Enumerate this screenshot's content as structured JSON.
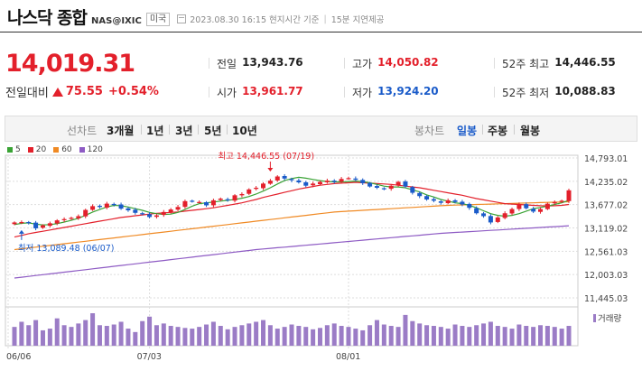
{
  "header": {
    "title": "나스닥 종합",
    "code": "NAS@IXIC",
    "nation": "미국",
    "timestamp": "2023.08.30 16:15 현지시간 기준",
    "delay": "15분 지연제공"
  },
  "quote": {
    "price": "14,019.31",
    "change_label": "전일대비",
    "change": "75.55",
    "change_pct": "+0.54%",
    "stats": [
      {
        "k": "전일",
        "v": "13,943.76",
        "tone": "neutral"
      },
      {
        "k": "고가",
        "v": "14,050.82",
        "tone": "red"
      },
      {
        "k": "52주 최고",
        "v": "14,446.55",
        "tone": "neutral"
      },
      {
        "k": "시가",
        "v": "13,961.77",
        "tone": "red"
      },
      {
        "k": "저가",
        "v": "13,924.20",
        "tone": "blue"
      },
      {
        "k": "52주 최저",
        "v": "10,088.83",
        "tone": "neutral"
      }
    ]
  },
  "toolbar": {
    "line_label": "선차트",
    "line_options": [
      "3개월",
      "1년",
      "3년",
      "5년",
      "10년"
    ],
    "bar_label": "봉차트",
    "bar_options": [
      "일봉",
      "주봉",
      "월봉"
    ],
    "active_bar": "일봉"
  },
  "chart_data": {
    "type": "candlestick",
    "x_ticks": [
      "06/06",
      "07/03",
      "08/01"
    ],
    "y_ticks": [
      14793.01,
      14235.02,
      13677.02,
      13119.02,
      12561.03,
      12003.03,
      11445.03
    ],
    "y_tick_labels": [
      "14,793.01",
      "14,235.02",
      "13,677.02",
      "13,119.02",
      "12,561.03",
      "12,003.03",
      "11,445.03"
    ],
    "ylim": [
      11445.03,
      14793.01
    ],
    "legend": [
      {
        "name": "5",
        "color": "#3aa335"
      },
      {
        "name": "20",
        "color": "#e3202b"
      },
      {
        "name": "60",
        "color": "#f08a24"
      },
      {
        "name": "120",
        "color": "#8e5bc4"
      }
    ],
    "volume_label": "거래량",
    "high_annotation": "최고 14,446.55 (07/19)",
    "low_annotation": "최저 13,089.48 (06/07)",
    "up_color": "#e3202b",
    "down_color": "#1a5bc9",
    "volume_color": "#9b7cc6",
    "closes": [
      13250,
      13260,
      13240,
      13110,
      13180,
      13230,
      13300,
      13330,
      13360,
      13400,
      13550,
      13640,
      13620,
      13700,
      13680,
      13580,
      13540,
      13480,
      13450,
      13380,
      13420,
      13500,
      13560,
      13620,
      13760,
      13750,
      13740,
      13660,
      13780,
      13820,
      13780,
      13900,
      13930,
      14040,
      14080,
      14180,
      14250,
      14350,
      14300,
      14260,
      14210,
      14130,
      14180,
      14220,
      14250,
      14220,
      14290,
      14310,
      14270,
      14190,
      14110,
      14080,
      14060,
      14130,
      14220,
      14110,
      13960,
      13880,
      13800,
      13770,
      13720,
      13780,
      13740,
      13680,
      13600,
      13470,
      13400,
      13250,
      13370,
      13470,
      13570,
      13680,
      13590,
      13510,
      13570,
      13700,
      13740,
      13770,
      14019
    ],
    "ma5": [
      13200,
      13230,
      13240,
      13210,
      13190,
      13200,
      13220,
      13260,
      13300,
      13350,
      13420,
      13500,
      13560,
      13620,
      13660,
      13650,
      13620,
      13580,
      13540,
      13490,
      13460,
      13440,
      13450,
      13490,
      13560,
      13640,
      13700,
      13720,
      13740,
      13760,
      13780,
      13800,
      13830,
      13870,
      13930,
      14000,
      14080,
      14170,
      14250,
      14300,
      14330,
      14310,
      14280,
      14250,
      14230,
      14220,
      14220,
      14230,
      14240,
      14230,
      14200,
      14160,
      14120,
      14100,
      14100,
      14080,
      14030,
      13980,
      13910,
      13860,
      13800,
      13760,
      13720,
      13700,
      13660,
      13600,
      13530,
      13460,
      13420,
      13400,
      13420,
      13460,
      13520,
      13580,
      13610,
      13640,
      13680,
      13720,
      13780
    ],
    "ma20": [
      12900,
      12940,
      12980,
      13010,
      13040,
      13070,
      13100,
      13130,
      13160,
      13190,
      13220,
      13250,
      13280,
      13310,
      13340,
      13370,
      13390,
      13410,
      13430,
      13450,
      13470,
      13480,
      13490,
      13500,
      13520,
      13540,
      13560,
      13580,
      13600,
      13630,
      13660,
      13690,
      13720,
      13760,
      13800,
      13850,
      13890,
      13930,
      13970,
      14010,
      14050,
      14080,
      14110,
      14140,
      14160,
      14180,
      14190,
      14200,
      14210,
      14200,
      14190,
      14180,
      14170,
      14160,
      14140,
      14120,
      14100,
      14080,
      14050,
      14020,
      13990,
      13960,
      13930,
      13900,
      13860,
      13820,
      13790,
      13760,
      13730,
      13700,
      13690,
      13680,
      13670,
      13660,
      13650,
      13645,
      13650,
      13660,
      13680
    ],
    "ma60": [
      12600,
      12620,
      12640,
      12660,
      12680,
      12700,
      12720,
      12740,
      12760,
      12780,
      12800,
      12820,
      12840,
      12860,
      12880,
      12900,
      12920,
      12940,
      12960,
      12980,
      13000,
      13020,
      13040,
      13060,
      13080,
      13100,
      13120,
      13140,
      13160,
      13180,
      13200,
      13220,
      13240,
      13260,
      13280,
      13300,
      13320,
      13340,
      13360,
      13380,
      13400,
      13420,
      13440,
      13460,
      13480,
      13500,
      13510,
      13520,
      13530,
      13540,
      13550,
      13560,
      13570,
      13580,
      13590,
      13600,
      13610,
      13620,
      13630,
      13640,
      13650,
      13660,
      13665,
      13670,
      13675,
      13680,
      13685,
      13690,
      13695,
      13700,
      13705,
      13710,
      13715,
      13720,
      13725,
      13730,
      13735,
      13740,
      13745
    ],
    "ma120": [
      11920,
      11940,
      11960,
      11980,
      12000,
      12020,
      12040,
      12060,
      12080,
      12100,
      12120,
      12140,
      12160,
      12180,
      12200,
      12220,
      12240,
      12260,
      12280,
      12300,
      12320,
      12340,
      12360,
      12380,
      12400,
      12420,
      12440,
      12460,
      12480,
      12500,
      12520,
      12540,
      12560,
      12580,
      12600,
      12615,
      12630,
      12645,
      12660,
      12675,
      12690,
      12705,
      12720,
      12735,
      12750,
      12765,
      12780,
      12795,
      12810,
      12825,
      12840,
      12855,
      12870,
      12885,
      12900,
      12915,
      12930,
      12945,
      12960,
      12975,
      12990,
      13000,
      13010,
      13020,
      13030,
      13040,
      13050,
      13060,
      13070,
      13080,
      13090,
      13100,
      13110,
      13120,
      13130,
      13140,
      13150,
      13160,
      13170
    ],
    "volumes": [
      55,
      70,
      60,
      75,
      45,
      50,
      80,
      60,
      55,
      65,
      75,
      95,
      60,
      58,
      62,
      70,
      50,
      40,
      72,
      85,
      60,
      65,
      58,
      55,
      52,
      50,
      55,
      62,
      70,
      58,
      48,
      55,
      60,
      65,
      70,
      75,
      60,
      50,
      55,
      62,
      58,
      55,
      48,
      52,
      60,
      65,
      58,
      55,
      50,
      45,
      60,
      75,
      62,
      58,
      55,
      90,
      72,
      65,
      60,
      58,
      55,
      50,
      62,
      58,
      55,
      60,
      65,
      70,
      58,
      55,
      50,
      62,
      58,
      55,
      60,
      58,
      55,
      50,
      58
    ]
  }
}
